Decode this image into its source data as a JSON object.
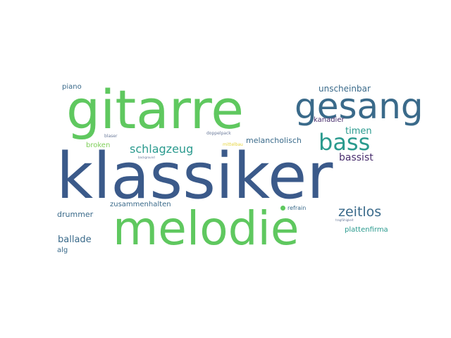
{
  "colors": {
    "background": "#ffffff",
    "dark_blue": "#3b5a8a",
    "green": "#5fc85f",
    "teal": "#2a9a8e",
    "slate": "#3a6a8a",
    "purple": "#4a2f6e",
    "light_green": "#7fcf5a",
    "yellow": "#e6d43a",
    "grey_blue": "#6a7a9a"
  },
  "words": [
    {
      "text": "klassiker",
      "weight": 1.0,
      "color": "dark_blue"
    },
    {
      "text": "gitarre",
      "weight": 0.85,
      "color": "green"
    },
    {
      "text": "melodie",
      "weight": 0.75,
      "color": "green"
    },
    {
      "text": "gesang",
      "weight": 0.55,
      "color": "slate"
    },
    {
      "text": "bass",
      "weight": 0.4,
      "color": "teal"
    },
    {
      "text": "schlagzeug",
      "weight": 0.25,
      "color": "teal"
    },
    {
      "text": "zeitlos",
      "weight": 0.25,
      "color": "slate"
    },
    {
      "text": "unscheinbar",
      "weight": 0.15,
      "color": "slate"
    },
    {
      "text": "timen",
      "weight": 0.14,
      "color": "teal"
    },
    {
      "text": "bassist",
      "weight": 0.15,
      "color": "purple"
    },
    {
      "text": "melancholisch",
      "weight": 0.13,
      "color": "slate"
    },
    {
      "text": "piano",
      "weight": 0.12,
      "color": "slate"
    },
    {
      "text": "broken",
      "weight": 0.12,
      "color": "light_green"
    },
    {
      "text": "drummer",
      "weight": 0.13,
      "color": "slate"
    },
    {
      "text": "zusammenhalten",
      "weight": 0.12,
      "color": "slate"
    },
    {
      "text": "ballade",
      "weight": 0.14,
      "color": "slate"
    },
    {
      "text": "alg",
      "weight": 0.12,
      "color": "slate"
    },
    {
      "text": "plattenfirma",
      "weight": 0.12,
      "color": "teal"
    },
    {
      "text": "kanadier",
      "weight": 0.1,
      "color": "purple"
    },
    {
      "text": "refrain",
      "weight": 0.08,
      "color": "slate"
    },
    {
      "text": "doppelpack",
      "weight": 0.06,
      "color": "grey_blue"
    },
    {
      "text": "blaser",
      "weight": 0.06,
      "color": "grey_blue"
    },
    {
      "text": "mittelbau",
      "weight": 0.06,
      "color": "yellow"
    },
    {
      "text": "background",
      "weight": 0.04,
      "color": "grey_blue"
    },
    {
      "text": "tragfähigkeit",
      "weight": 0.03,
      "color": "grey_blue"
    }
  ]
}
